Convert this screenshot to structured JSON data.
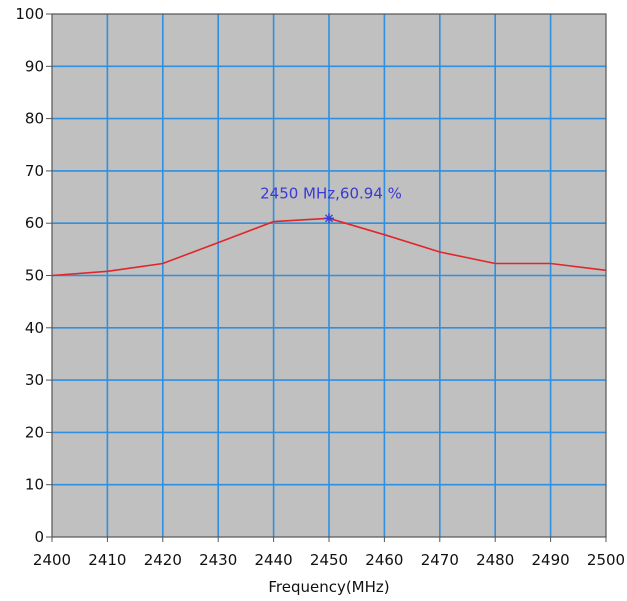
{
  "chart_data": {
    "type": "line",
    "title": "",
    "xlabel": "Frequency(MHz)",
    "ylabel": "",
    "xlim": [
      2400,
      2500
    ],
    "ylim": [
      0,
      100
    ],
    "x_ticks": [
      "2400",
      "2410",
      "2420",
      "2430",
      "2440",
      "2450",
      "2460",
      "2470",
      "2480",
      "2490",
      "2500"
    ],
    "y_ticks": [
      "0",
      "10",
      "20",
      "30",
      "40",
      "50",
      "60",
      "70",
      "80",
      "90",
      "100"
    ],
    "grid": true,
    "series": [
      {
        "x": [
          2400,
          2410,
          2420,
          2430,
          2440,
          2450,
          2460,
          2470,
          2480,
          2490,
          2500
        ],
        "values": [
          50.0,
          50.8,
          52.3,
          56.3,
          60.3,
          60.94,
          57.8,
          54.5,
          52.3,
          52.3,
          51.0
        ],
        "color": "#e0262b"
      }
    ],
    "marker": {
      "x": 2450,
      "y": 60.94,
      "label": "2450 MHz,60.94 %",
      "color": "#3a3ad4"
    },
    "colors": {
      "plot_background": "#c0c0c0",
      "grid": "#2f8fe0",
      "axis": "#555555"
    }
  }
}
